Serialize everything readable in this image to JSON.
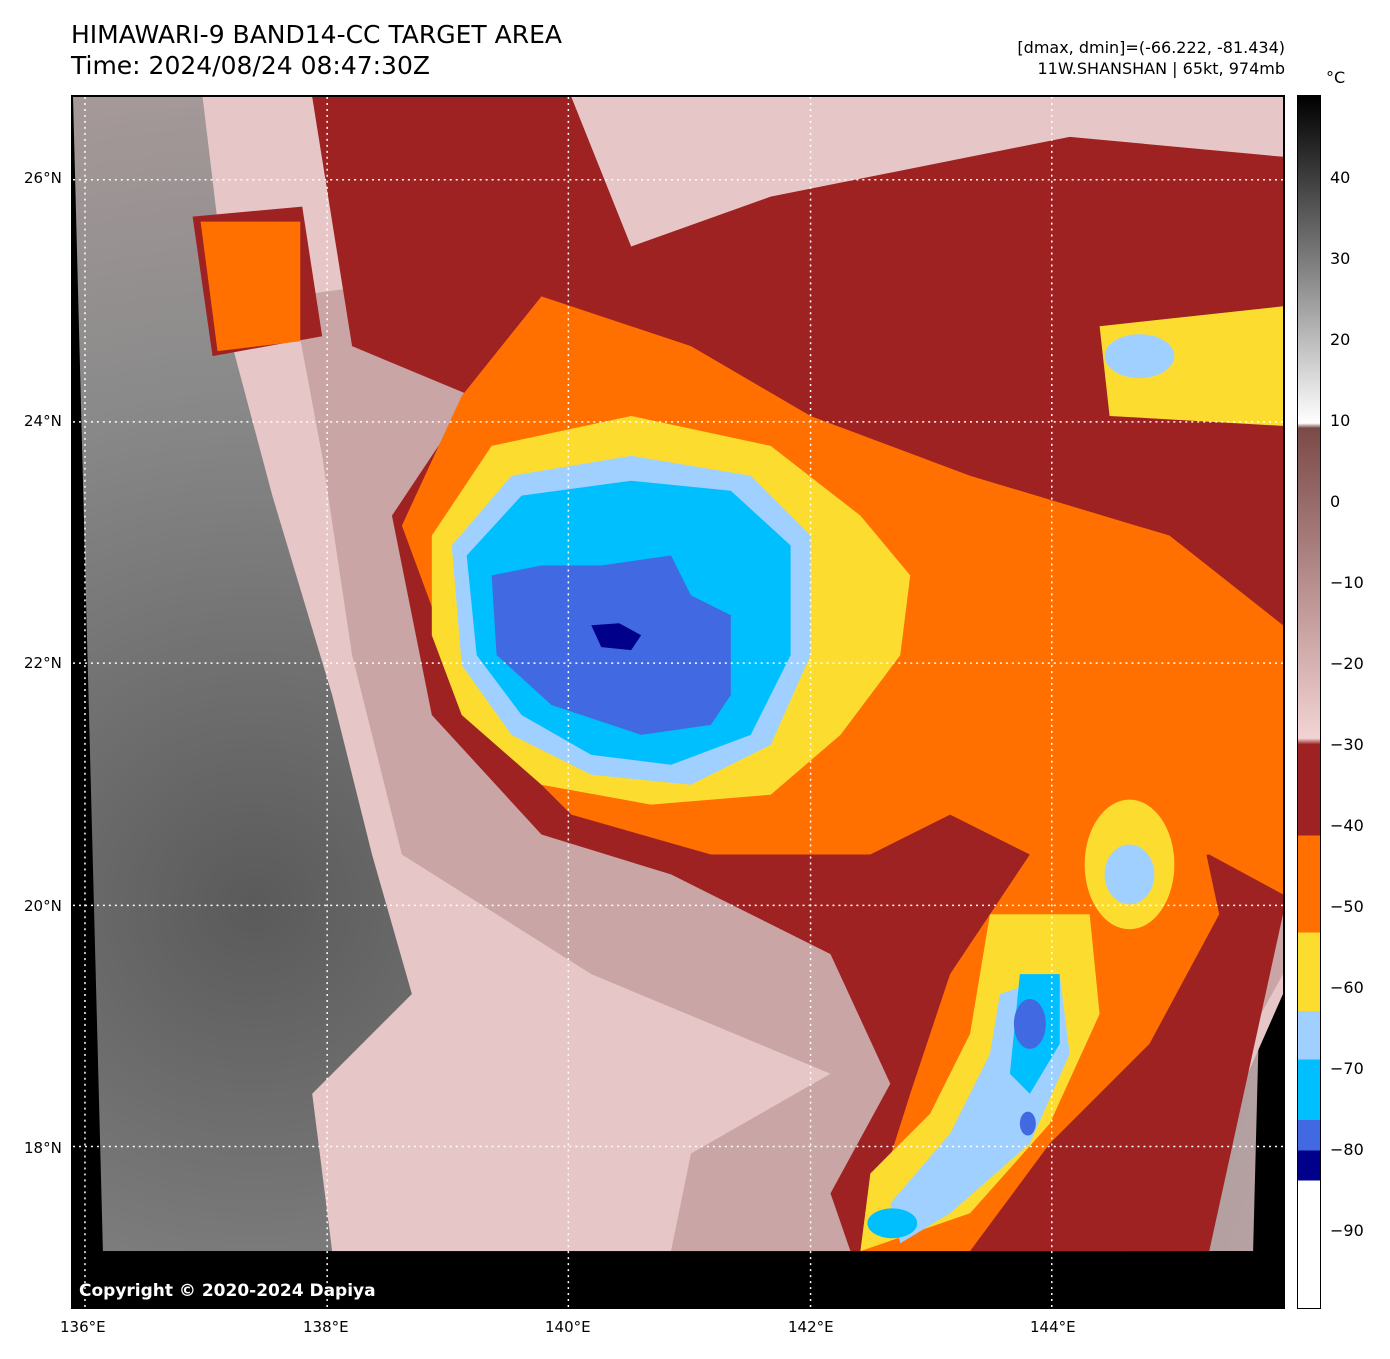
{
  "header": {
    "title_line1": "HIMAWARI-9 BAND14-CC TARGET AREA",
    "title_line2": "Time: 2024/08/24 08:47:30Z",
    "range_text": "[dmax, dmin]=(-66.222, -81.434)",
    "storm_text": "11W.SHANSHAN | 65kt, 974mb"
  },
  "map": {
    "copyright": "Copyright © 2020-2024 Dapiya",
    "lat_labels": [
      "26°N",
      "24°N",
      "22°N",
      "20°N",
      "18°N"
    ],
    "lon_labels": [
      "136°E",
      "138°E",
      "140°E",
      "142°E",
      "144°E"
    ]
  },
  "colorbar": {
    "unit": "°C",
    "ticks": [
      "40",
      "30",
      "20",
      "10",
      "0",
      "−10",
      "−20",
      "−30",
      "−40",
      "−50",
      "−60",
      "−70",
      "−80",
      "−90"
    ],
    "colors": {
      "warm_top": "#000000",
      "gray_mid": "#808080",
      "white": "#ffffff",
      "brown": "#7a4a48",
      "pink": "#f2d3d3",
      "dark_red": "#9e2222",
      "orange": "#ff7000",
      "yellow": "#fddc30",
      "light_blue": "#a0d0ff",
      "cyan": "#00bfff",
      "royal_blue": "#4169e1",
      "navy": "#00008b"
    }
  }
}
